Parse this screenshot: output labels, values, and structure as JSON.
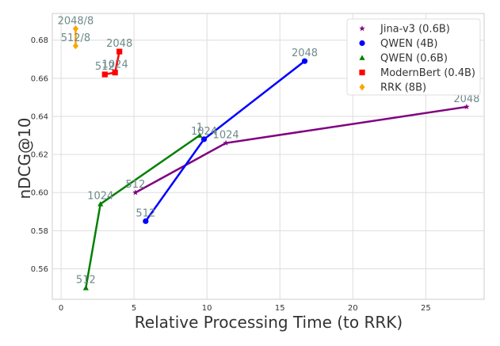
{
  "chart_data": {
    "type": "line",
    "xlabel": "Relative Processing Time (to RRK)",
    "ylabel": "nDCG@10",
    "xlim": [
      -0.6,
      29
    ],
    "ylim": [
      0.544,
      0.694
    ],
    "xticks": [
      0,
      5,
      10,
      15,
      20,
      25
    ],
    "yticks": [
      0.56,
      0.58,
      0.6,
      0.62,
      0.64,
      0.66,
      0.68
    ],
    "grid": true,
    "legend_position": "top-right",
    "series": [
      {
        "name": "Jina-v3 (0.6B)",
        "color": "#800080",
        "marker": "star",
        "points": [
          {
            "x": 5.1,
            "y": 0.6,
            "label": "512"
          },
          {
            "x": 11.3,
            "y": 0.626,
            "label": "1024"
          },
          {
            "x": 27.8,
            "y": 0.645,
            "label": "2048"
          }
        ]
      },
      {
        "name": "QWEN (4B)",
        "color": "#0000ff",
        "marker": "circle",
        "points": [
          {
            "x": 5.8,
            "y": 0.585,
            "label": "512"
          },
          {
            "x": 9.8,
            "y": 0.628,
            "label": "1024"
          },
          {
            "x": 16.7,
            "y": 0.669,
            "label": "2048"
          }
        ]
      },
      {
        "name": "QWEN (0.6B)",
        "color": "#008000",
        "marker": "triangle",
        "points": [
          {
            "x": 1.7,
            "y": 0.55,
            "label": "512"
          },
          {
            "x": 2.7,
            "y": 0.594,
            "label": "1024"
          },
          {
            "x": 9.5,
            "y": 0.63,
            "label": "1"
          }
        ]
      },
      {
        "name": "ModernBert (0.4B)",
        "color": "#ff0000",
        "marker": "square",
        "points": [
          {
            "x": 3.0,
            "y": 0.662,
            "label": "512"
          },
          {
            "x": 3.7,
            "y": 0.663,
            "label": "1024"
          },
          {
            "x": 4.0,
            "y": 0.674,
            "label": "2048"
          }
        ]
      },
      {
        "name": "RRK (8B)",
        "color": "#ffa500",
        "marker": "diamond",
        "points": [
          {
            "x": 1.0,
            "y": 0.677,
            "label": "512/8"
          },
          {
            "x": 1.0,
            "y": 0.686,
            "label": "2048/8"
          }
        ]
      }
    ]
  }
}
